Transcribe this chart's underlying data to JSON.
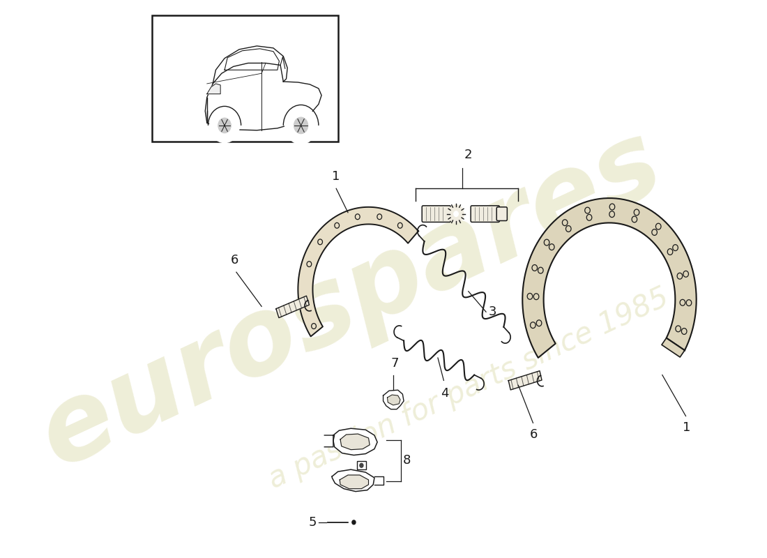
{
  "background_color": "#ffffff",
  "line_color": "#1a1a1a",
  "shoe_fill": "#e8dfc8",
  "shoe_fill_right": "#ddd5bb",
  "bolt_fill": "#f0ece0",
  "watermark_text1": "eurospares",
  "watermark_text2": "a passion for parts since 1985",
  "watermark_color": "#d0ce90",
  "fig_width": 11.0,
  "fig_height": 8.0,
  "dpi": 100
}
